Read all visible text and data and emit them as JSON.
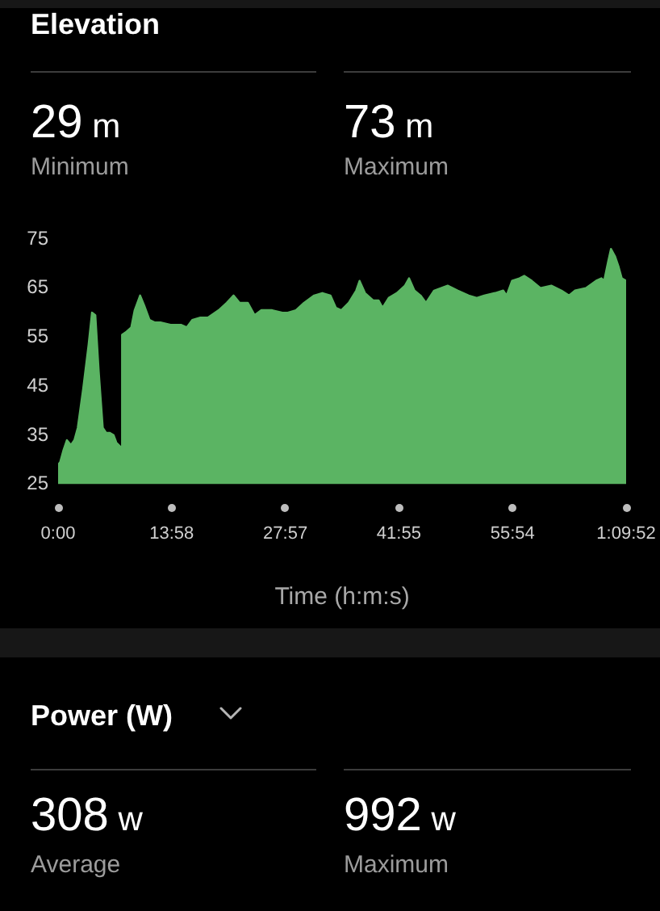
{
  "chart_data": [
    {
      "type": "area",
      "title": "Elevation",
      "annotations": [
        "29 m",
        "Minimum",
        "73 m",
        "Maximum"
      ],
      "xlabel": "Time (h:m:s)",
      "x": [
        0,
        15,
        40,
        65,
        95,
        120,
        145,
        185,
        225,
        250,
        275,
        300,
        330,
        355,
        380,
        410,
        430,
        466,
        472,
        500,
        540,
        565,
        605,
        635,
        675,
        715,
        755,
        830,
        910,
        950,
        990,
        1050,
        1105,
        1185,
        1245,
        1295,
        1340,
        1400,
        1450,
        1500,
        1580,
        1655,
        1695,
        1755,
        1815,
        1890,
        1950,
        2010,
        2050,
        2090,
        2145,
        2200,
        2225,
        2265,
        2325,
        2365,
        2395,
        2440,
        2500,
        2560,
        2590,
        2630,
        2675,
        2715,
        2775,
        2875,
        2950,
        3030,
        3090,
        3145,
        3225,
        3285,
        3310,
        3350,
        3405,
        3440,
        3495,
        3560,
        3640,
        3715,
        3770,
        3815,
        3895,
        3970,
        4010,
        4030,
        4060,
        4080,
        4110,
        4135,
        4160,
        4192
      ],
      "values": [
        29,
        29.5,
        32,
        34,
        33,
        34,
        36.5,
        44.5,
        53.5,
        60,
        59.5,
        48,
        36.5,
        35.5,
        35.5,
        35,
        33.5,
        32.5,
        55.5,
        56,
        57,
        60.5,
        63.5,
        61.5,
        58.5,
        58,
        58,
        57.5,
        57.5,
        57,
        58.5,
        59,
        59,
        60.5,
        62,
        63.5,
        62,
        62,
        59.5,
        60.5,
        60.5,
        60,
        60,
        60.5,
        62,
        63.5,
        64,
        63.5,
        61,
        60.5,
        62,
        64.5,
        66.5,
        64,
        62.5,
        62.5,
        61,
        63,
        64,
        65.5,
        67,
        64.5,
        63.5,
        62,
        64.5,
        65.5,
        64.5,
        63.5,
        63,
        63.5,
        64,
        64.5,
        63.5,
        66.5,
        67,
        67.5,
        66.5,
        65,
        65.5,
        64.5,
        63.5,
        64.5,
        65,
        66.5,
        67,
        66.5,
        70.5,
        73,
        71.5,
        69.5,
        67,
        66.5
      ],
      "color": "#5bb463",
      "xlim": [
        0,
        4192
      ],
      "xticks": [
        {
          "value": 0,
          "label": "0:00"
        },
        {
          "value": 838,
          "label": "13:58"
        },
        {
          "value": 1677,
          "label": "27:57"
        },
        {
          "value": 2515,
          "label": "41:55"
        },
        {
          "value": 3354,
          "label": "55:54"
        },
        {
          "value": 4192,
          "label": "1:09:52"
        }
      ],
      "ylim": [
        25,
        75
      ],
      "yticks": [
        25,
        35,
        45,
        55,
        65,
        75
      ]
    },
    {
      "type": "other",
      "title": "Power (W)",
      "annotations": [
        "308 w",
        "Average",
        "992 w",
        "Maximum"
      ]
    }
  ]
}
